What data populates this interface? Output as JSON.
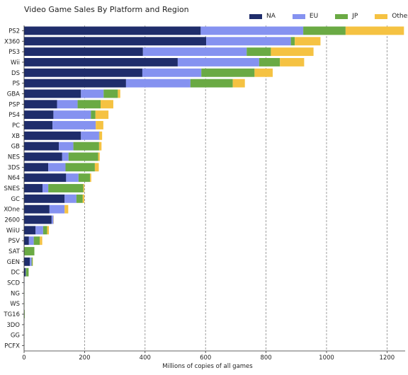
{
  "chart_data": {
    "type": "bar",
    "orientation": "horizontal",
    "stacked": true,
    "title": "Video Game Sales By Platform and Region",
    "xlabel": "Millions of copies of all games",
    "ylabel": "",
    "xlim": [
      0,
      1260
    ],
    "xticks": [
      0,
      200,
      400,
      600,
      800,
      1000,
      1200
    ],
    "grid": "vertical dashed",
    "legend_position": "top-right",
    "categories": [
      "PS2",
      "X360",
      "PS3",
      "Wii",
      "DS",
      "PS",
      "GBA",
      "PSP",
      "PS4",
      "PC",
      "XB",
      "GB",
      "NES",
      "3DS",
      "N64",
      "SNES",
      "GC",
      "XOne",
      "2600",
      "WiiU",
      "PSV",
      "SAT",
      "GEN",
      "DC",
      "SCD",
      "NG",
      "WS",
      "TG16",
      "3DO",
      "GG",
      "PCFX"
    ],
    "series": [
      {
        "name": "NA",
        "color": "#1f2d6b",
        "values": [
          584,
          602,
          393,
          508,
          391,
          337,
          188,
          109,
          97,
          94,
          188,
          115,
          126,
          80,
          139,
          61,
          134,
          84,
          91,
          38,
          16,
          1,
          19,
          5,
          1,
          0,
          0,
          0,
          0,
          0,
          0
        ]
      },
      {
        "name": "EU",
        "color": "#8592f0",
        "values": [
          339,
          280,
          343,
          269,
          195,
          213,
          75,
          68,
          124,
          143,
          60,
          48,
          21,
          57,
          41,
          19,
          39,
          50,
          6,
          25,
          16,
          0,
          6,
          1,
          0,
          0,
          0,
          0,
          0,
          0,
          0
        ]
      },
      {
        "name": "JP",
        "color": "#6aaa44",
        "values": [
          140,
          13,
          80,
          69,
          176,
          140,
          47,
          76,
          15,
          0,
          1,
          85,
          98,
          97,
          38,
          116,
          21,
          0,
          0,
          13,
          20,
          33,
          3,
          9,
          0,
          1,
          1,
          2,
          0,
          0,
          0
        ]
      },
      {
        "name": "Others",
        "color": "#f5c242",
        "values": [
          193,
          85,
          141,
          80,
          60,
          40,
          8,
          42,
          43,
          25,
          9,
          8,
          5,
          13,
          4,
          3,
          5,
          12,
          1,
          6,
          8,
          0,
          1,
          0,
          0,
          0,
          0,
          0,
          0,
          0,
          0
        ]
      }
    ]
  }
}
